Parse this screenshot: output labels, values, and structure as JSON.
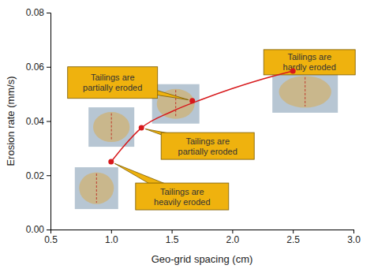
{
  "chart_data": {
    "type": "scatter",
    "x_label": "Geo-grid spacing (cm)",
    "y_label": "Erosion rate (mm/s)",
    "xlim": [
      0.5,
      3.0
    ],
    "xticks": [
      0.5,
      {
        "value": 1,
        "label": "1.0"
      },
      1.5,
      {
        "value": 2,
        "label": "2.0"
      },
      2.5,
      {
        "value": 3,
        "label": "3.0"
      }
    ],
    "ylim": [
      0,
      0.08
    ],
    "yticks": [
      {
        "value": 0,
        "label": "0.00"
      },
      0.02,
      0.04,
      0.06,
      0.08
    ],
    "series": [
      {
        "type": "scatter",
        "color": "#d7191c",
        "marker": "circle",
        "x": [
          1.0,
          1.25,
          1.67,
          2.5
        ],
        "values": [
          0.025,
          0.0375,
          0.0475,
          0.0585
        ]
      },
      {
        "type": "line",
        "color": "#d7191c",
        "line_style": "solid",
        "x": [
          1.0,
          1.1,
          1.25,
          1.5,
          1.75,
          2.0,
          2.25,
          2.5
        ],
        "values": [
          0.025,
          0.0305,
          0.0375,
          0.0435,
          0.048,
          0.052,
          0.0555,
          0.0585
        ]
      }
    ],
    "annotations": [
      {
        "text": [
          "Tailings are",
          "heavily eroded"
        ],
        "x": 1.0,
        "y": 0.025
      },
      {
        "text": [
          "Tailings are",
          "partially eroded"
        ],
        "x": 1.25,
        "y": 0.0375
      },
      {
        "text": [
          "Tailings are",
          "partially eroded"
        ],
        "x": 1.67,
        "y": 0.0475
      },
      {
        "text": [
          "Tailings are",
          "hardly eroded"
        ],
        "x": 2.5,
        "y": 0.0585
      }
    ]
  }
}
